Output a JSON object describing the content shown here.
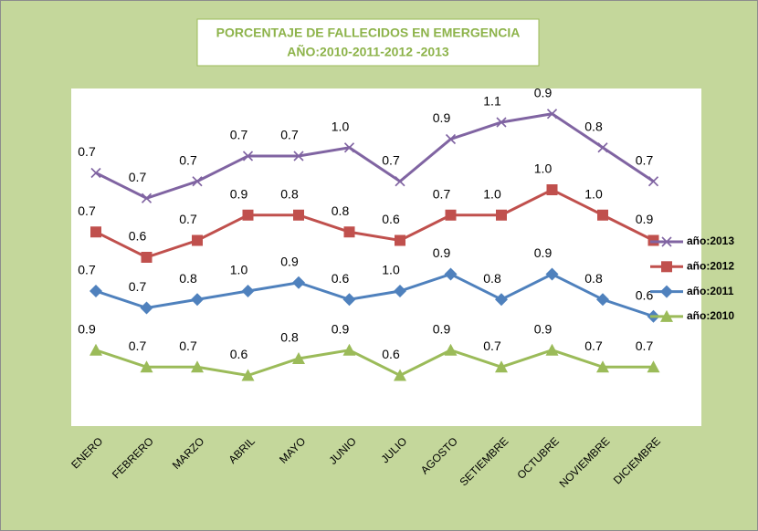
{
  "chart_data": {
    "type": "line",
    "stacked": true,
    "title": [
      "PORCENTAJE DE FALLECIDOS EN EMERGENCIA",
      "AÑO:2010-2011-2012 -2013"
    ],
    "categories": [
      "ENERO",
      "FEBRERO",
      "MARZO",
      "ABRIL",
      "MAYO",
      "JUNIO",
      "JULIO",
      "AGOSTO",
      "SETIEMBRE",
      "OCTUBRE",
      "NOVIEMBRE",
      "DICIEMBRE"
    ],
    "ylim": [
      0,
      4
    ],
    "series": [
      {
        "name": "año:2013",
        "color": "#8064a2",
        "marker": "x",
        "values": [
          0.7,
          0.7,
          0.7,
          0.7,
          0.7,
          1.0,
          0.7,
          0.9,
          1.1,
          0.9,
          0.8,
          0.7
        ],
        "value_labels": [
          "0.7",
          "0.7",
          "0.7",
          "0.7",
          "0.7",
          "1.0",
          "0.7",
          "0.9",
          "1.1",
          "0.9",
          "0.8",
          "0.7"
        ]
      },
      {
        "name": "año:2012",
        "color": "#c0504d",
        "marker": "square",
        "values": [
          0.7,
          0.6,
          0.7,
          0.9,
          0.8,
          0.8,
          0.6,
          0.7,
          1.0,
          1.0,
          1.0,
          0.9
        ],
        "value_labels": [
          "0.7",
          "0.6",
          "0.7",
          "0.9",
          "0.8",
          "0.8",
          "0.6",
          "0.7",
          "1.0",
          "1.0",
          "1.0",
          "0.9"
        ]
      },
      {
        "name": "año:2011",
        "color": "#4f81bd",
        "marker": "diamond",
        "values": [
          0.7,
          0.7,
          0.8,
          1.0,
          0.9,
          0.6,
          1.0,
          0.9,
          0.8,
          0.9,
          0.8,
          0.6
        ],
        "value_labels": [
          "0.7",
          "0.7",
          "0.8",
          "1.0",
          "0.9",
          "0.6",
          "1.0",
          "0.9",
          "0.8",
          "0.9",
          "0.8",
          "0.6"
        ]
      },
      {
        "name": "año:2010",
        "color": "#9bbb59",
        "marker": "triangle",
        "values": [
          0.9,
          0.7,
          0.7,
          0.6,
          0.8,
          0.9,
          0.6,
          0.9,
          0.7,
          0.9,
          0.7,
          0.7
        ],
        "value_labels": [
          "0.9",
          "0.7",
          "0.7",
          "0.6",
          "0.8",
          "0.9",
          "0.6",
          "0.9",
          "0.7",
          "0.9",
          "0.7",
          "0.7"
        ]
      }
    ]
  }
}
